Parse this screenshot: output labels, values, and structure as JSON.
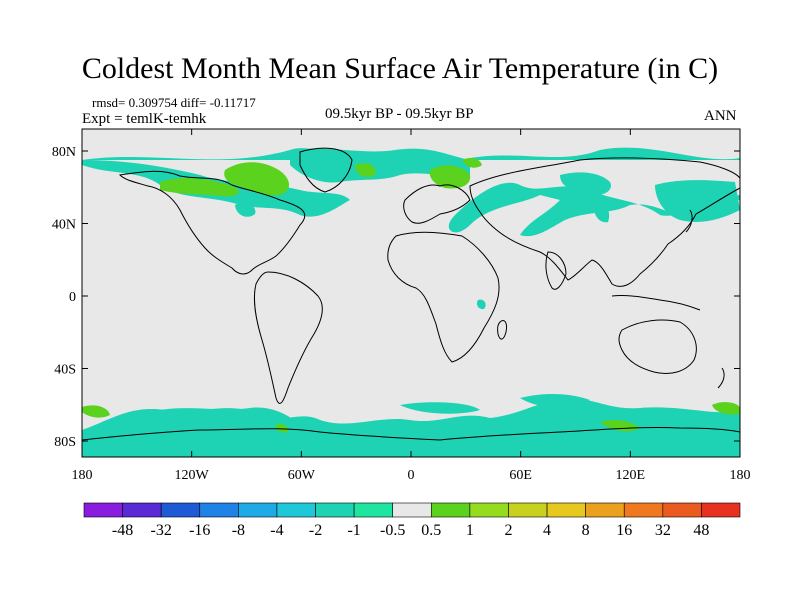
{
  "header": {
    "title": "Coldest Month Mean Surface Air Temperature (in C)",
    "stats": "rmsd= 0.309754 diff= -0.11717",
    "experiment": "Expt = temlK-temhk",
    "period": "09.5kyr BP - 09.5kyr BP",
    "season": "ANN"
  },
  "axes": {
    "lat_ticks": [
      {
        "value": 80,
        "label": "80N"
      },
      {
        "value": 40,
        "label": "40N"
      },
      {
        "value": 0,
        "label": "0"
      },
      {
        "value": -40,
        "label": "40S"
      },
      {
        "value": -80,
        "label": "80S"
      }
    ],
    "lon_ticks": [
      {
        "value": -180,
        "label": "180"
      },
      {
        "value": -120,
        "label": "120W"
      },
      {
        "value": -60,
        "label": "60W"
      },
      {
        "value": 0,
        "label": "0"
      },
      {
        "value": 60,
        "label": "60E"
      },
      {
        "value": 120,
        "label": "120E"
      },
      {
        "value": 180,
        "label": "180"
      }
    ]
  },
  "colorbar": {
    "colors": [
      "#8a1ce0",
      "#5a2ad6",
      "#1e5ad6",
      "#1e82e6",
      "#1eaae6",
      "#1ec8d8",
      "#1ed2b4",
      "#1ee6a0",
      "#e8e8e8",
      "#5ad21e",
      "#96dc1e",
      "#c8d21e",
      "#e6c81e",
      "#eba01e",
      "#f0781e",
      "#eb5a1e",
      "#e6321e"
    ],
    "labels": [
      "-48",
      "-32",
      "-16",
      "-8",
      "-4",
      "-2",
      "-1",
      "-0.5",
      "0.5",
      "1",
      "2",
      "4",
      "8",
      "16",
      "32",
      "48"
    ]
  },
  "map_style": {
    "background": "#e8e8e8",
    "cool_color": "#1ed2b4",
    "warm_color": "#5ad21e",
    "coastline_color": "#000000"
  }
}
